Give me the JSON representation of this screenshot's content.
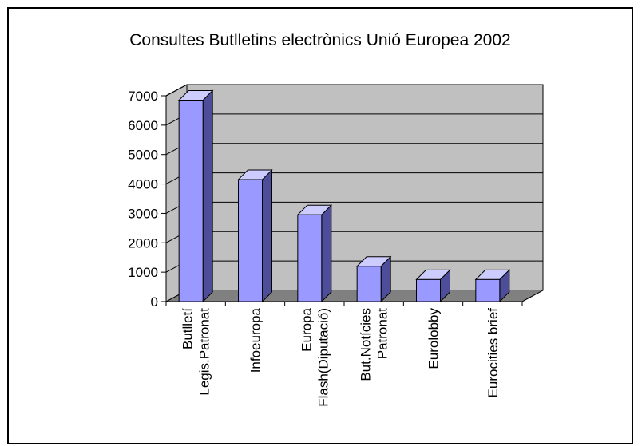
{
  "chart_data": {
    "type": "bar",
    "title": "Consultes Butlletins electrònics Unió Europea 2002",
    "xlabel": "",
    "ylabel": "",
    "ylim": [
      0,
      7000
    ],
    "yticks": [
      0,
      1000,
      2000,
      3000,
      4000,
      5000,
      6000,
      7000
    ],
    "grid": true,
    "legend": "none",
    "style": "3d-bar",
    "categories": [
      [
        "Butlletí",
        "Legis.Patronat"
      ],
      [
        "Infoeuropa"
      ],
      [
        "Europa",
        "Flash(Diputació)"
      ],
      [
        "But.Notícies",
        "Patronat"
      ],
      [
        "Eurolobby"
      ],
      [
        "Eurocities brief"
      ]
    ],
    "values": [
      6850,
      4150,
      2950,
      1200,
      750,
      750
    ],
    "colors": {
      "bar_front": "#9999ff",
      "bar_top": "#ccccff",
      "bar_side": "#4d4d99",
      "wall": "#c0c0c0",
      "floor": "#808080",
      "gridline": "#000000"
    }
  }
}
